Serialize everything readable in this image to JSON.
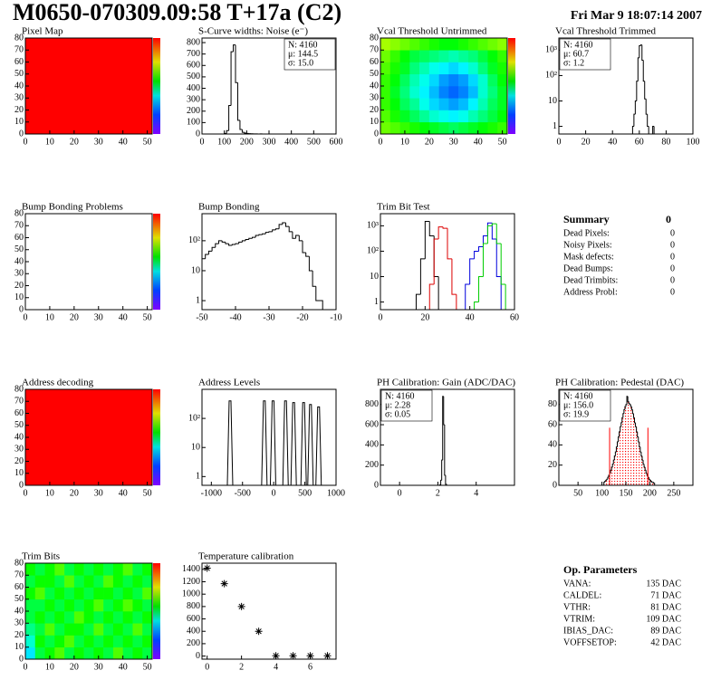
{
  "header": {
    "title": "M0650-070309.09:58 T+17a (C2)",
    "date": "Fri Mar  9 18:07:14 2007"
  },
  "chart_data": [
    {
      "type": "heatmap",
      "title": "Pixel Map",
      "color": "#ff0000",
      "xlim": [
        0,
        52
      ],
      "ylim": [
        0,
        80
      ],
      "xticks": [
        0,
        10,
        20,
        30,
        40,
        50
      ],
      "yticks": [
        0,
        10,
        20,
        30,
        40,
        50,
        60,
        70,
        80
      ]
    },
    {
      "type": "histogram",
      "title": "S-Curve widths: Noise (e⁻)",
      "color": "#000000",
      "bins": [
        100,
        110,
        120,
        130,
        140,
        150,
        160,
        170,
        180,
        190,
        200,
        210,
        220,
        230,
        240,
        250,
        260,
        270,
        280,
        290
      ],
      "values": [
        5,
        30,
        250,
        720,
        780,
        450,
        120,
        40,
        15,
        8,
        5,
        3,
        2,
        1,
        1,
        0,
        1,
        0,
        0
      ],
      "xlim": [
        0,
        600
      ],
      "ylim": [
        0,
        840
      ],
      "xticks": [
        0,
        100,
        200,
        300,
        400,
        500,
        600
      ],
      "yticks": [
        0,
        100,
        200,
        300,
        400,
        500,
        600,
        700,
        800
      ],
      "stats_corner": "top-right",
      "stats": [
        {
          "text": "N: 4160"
        },
        {
          "text": "μ: 144.5"
        },
        {
          "text": "σ: 15.0"
        }
      ]
    },
    {
      "type": "heatmap",
      "title": "Vcal Threshold Untrimmed",
      "zlim": [
        100,
        140
      ],
      "xlim": [
        0,
        52
      ],
      "ylim": [
        0,
        80
      ],
      "xticks": [
        0,
        10,
        20,
        30,
        40,
        50
      ],
      "yticks": [
        0,
        10,
        20,
        30,
        40,
        50,
        60,
        70,
        80
      ],
      "z": [
        [
          126,
          125,
          124,
          123,
          122,
          121,
          120,
          119,
          120,
          121,
          122,
          123,
          124
        ],
        [
          125,
          123,
          121,
          119,
          117,
          115,
          114,
          113,
          114,
          116,
          118,
          120,
          122
        ],
        [
          124,
          122,
          119,
          117,
          114,
          112,
          111,
          110,
          111,
          113,
          116,
          119,
          121
        ],
        [
          124,
          121,
          118,
          115,
          113,
          111,
          109,
          108,
          109,
          111,
          115,
          118,
          121
        ],
        [
          124,
          122,
          119,
          116,
          114,
          112,
          110,
          109,
          110,
          112,
          115,
          119,
          122
        ],
        [
          125,
          123,
          121,
          118,
          116,
          114,
          113,
          112,
          113,
          115,
          118,
          121,
          123
        ],
        [
          126,
          124,
          122,
          120,
          119,
          118,
          117,
          116,
          117,
          118,
          120,
          122,
          124
        ],
        [
          128,
          127,
          126,
          125,
          124,
          123,
          122,
          122,
          123,
          124,
          125,
          126,
          127
        ]
      ]
    },
    {
      "type": "histogram",
      "title": "Vcal Threshold Trimmed",
      "color": "#000000",
      "logy": true,
      "bins": [
        55,
        56,
        57,
        58,
        59,
        60,
        61,
        62,
        63,
        64,
        65,
        66,
        67,
        68,
        69,
        70,
        71,
        72
      ],
      "values": [
        1,
        3,
        10,
        60,
        500,
        1500,
        1600,
        400,
        60,
        12,
        3,
        1,
        0,
        0,
        0,
        1,
        0
      ],
      "xlim": [
        0,
        100
      ],
      "ylim": [
        0.5,
        3000
      ],
      "xticks": [
        0,
        20,
        40,
        60,
        80,
        100
      ],
      "yticks": [
        1,
        10,
        {
          "value": 100,
          "label": "10²"
        },
        {
          "value": 1000,
          "label": "10³"
        }
      ],
      "stats_corner": "top-left",
      "stats": [
        {
          "text": "N: 4160"
        },
        {
          "text": "μ: 60.7"
        },
        {
          "text": "σ:  1.2"
        }
      ]
    },
    {
      "type": "heatmap",
      "title": "Bump Bonding Problems",
      "xlim": [
        0,
        52
      ],
      "ylim": [
        0,
        80
      ],
      "xticks": [
        0,
        10,
        20,
        30,
        40,
        50
      ],
      "yticks": [
        0,
        10,
        20,
        30,
        40,
        50,
        60,
        70,
        80
      ]
    },
    {
      "type": "histogram",
      "title": "Bump Bonding",
      "color": "#000000",
      "logy": true,
      "bins": [
        -50,
        -49,
        -48,
        -47,
        -46,
        -45,
        -44,
        -43,
        -42,
        -41,
        -40,
        -39,
        -38,
        -37,
        -36,
        -35,
        -34,
        -33,
        -32,
        -31,
        -30,
        -29,
        -28,
        -27,
        -26,
        -25,
        -24,
        -23,
        -22,
        -21,
        -20,
        -19,
        -18,
        -17,
        -16,
        -15,
        -14
      ],
      "values": [
        25,
        35,
        45,
        60,
        80,
        100,
        90,
        80,
        70,
        75,
        80,
        90,
        100,
        110,
        120,
        130,
        150,
        160,
        170,
        190,
        200,
        230,
        250,
        350,
        400,
        300,
        200,
        120,
        150,
        100,
        40,
        30,
        10,
        3,
        1,
        1
      ],
      "xlim": [
        -50,
        -10
      ],
      "ylim": [
        0.5,
        800
      ],
      "xticks": [
        -50,
        -40,
        -30,
        -20,
        -10
      ],
      "yticks": [
        1,
        10,
        {
          "value": 100,
          "label": "10²"
        }
      ]
    },
    {
      "type": "histogram",
      "title": "Trim Bit Test",
      "logy": true,
      "bins": [
        10,
        12,
        14,
        16,
        18,
        20,
        22,
        24,
        26,
        28,
        30,
        32,
        34,
        36,
        38,
        40,
        42,
        44,
        46,
        48,
        50,
        52,
        54,
        56,
        58,
        60
      ],
      "series": [
        {
          "color": "#000000",
          "values": [
            0,
            0,
            0,
            2,
            50,
            1500,
            400,
            10,
            0,
            0,
            0,
            0,
            0,
            0,
            0,
            0,
            0,
            0,
            0,
            0,
            0,
            0,
            0,
            0,
            0
          ]
        },
        {
          "color": "#dd0000",
          "values": [
            0,
            0,
            0,
            0,
            0,
            0,
            5,
            300,
            900,
            800,
            50,
            2,
            0,
            0,
            0,
            0,
            0,
            0,
            0,
            0,
            0,
            0,
            0,
            0,
            0
          ]
        },
        {
          "color": "#0000dd",
          "values": [
            0,
            0,
            0,
            0,
            0,
            0,
            0,
            0,
            0,
            0,
            0,
            0,
            0,
            0,
            5,
            50,
            100,
            150,
            400,
            1300,
            300,
            10,
            0,
            0,
            0
          ]
        },
        {
          "color": "#00cc00",
          "values": [
            0,
            0,
            0,
            0,
            0,
            0,
            0,
            0,
            0,
            0,
            0,
            0,
            0,
            0,
            0,
            0,
            1,
            10,
            200,
            1000,
            1200,
            200,
            5,
            0,
            0
          ]
        }
      ],
      "xlim": [
        0,
        60
      ],
      "ylim": [
        0.5,
        3000
      ],
      "xticks": [
        0,
        20,
        40,
        60
      ],
      "yticks": [
        1,
        10,
        {
          "value": 100,
          "label": "10²"
        },
        {
          "value": 1000,
          "label": "10³"
        }
      ]
    },
    {
      "type": "heatmap",
      "title": "Address decoding",
      "color": "#ff0000",
      "xlim": [
        0,
        52
      ],
      "ylim": [
        0,
        80
      ],
      "xticks": [
        0,
        10,
        20,
        30,
        40,
        50
      ],
      "yticks": [
        0,
        10,
        20,
        30,
        40,
        50,
        60,
        70,
        80
      ]
    },
    {
      "type": "spikes",
      "title": "Address Levels",
      "color": "#000000",
      "logy": true,
      "x": [
        -700,
        -150,
        -10,
        190,
        320,
        480,
        590,
        720
      ],
      "values": [
        400,
        400,
        400,
        400,
        350,
        350,
        300,
        250
      ],
      "xlim": [
        -1150,
        1000
      ],
      "ylim": [
        0.5,
        1000
      ],
      "xticks": [
        -1000,
        -500,
        0,
        500,
        1000
      ],
      "yticks": [
        1,
        10,
        {
          "value": 100,
          "label": "10²"
        }
      ]
    },
    {
      "type": "histogram",
      "title": "PH Calibration: Gain (ADC/DAC)",
      "color": "#000000",
      "bins": [
        2.1,
        2.15,
        2.2,
        2.25,
        2.3,
        2.35,
        2.4,
        2.45
      ],
      "values": [
        5,
        50,
        250,
        880,
        600,
        100,
        10
      ],
      "xlim": [
        -1,
        6
      ],
      "ylim": [
        0,
        950
      ],
      "xticks": [
        0,
        2,
        4
      ],
      "yticks": [
        0,
        200,
        400,
        600,
        800
      ],
      "stats_corner": "top-left",
      "stats": [
        {
          "text": "N: 4160"
        },
        {
          "text": "μ: 2.28"
        },
        {
          "text": "σ: 0.05"
        }
      ]
    },
    {
      "type": "histogram",
      "title": "PH Calibration: Pedestal (DAC)",
      "color": "#000000",
      "fill_color": "#ff0000",
      "bins": [
        104,
        106,
        108,
        110,
        112,
        114,
        116,
        118,
        120,
        122,
        124,
        126,
        128,
        130,
        132,
        134,
        136,
        138,
        140,
        142,
        144,
        146,
        148,
        150,
        152,
        154,
        156,
        158,
        160,
        162,
        164,
        166,
        168,
        170,
        172,
        174,
        176,
        178,
        180,
        182,
        184,
        186,
        188,
        190,
        192,
        194,
        196,
        198,
        200,
        202,
        204,
        206,
        208,
        210
      ],
      "values": [
        3,
        4,
        5,
        6,
        8,
        10,
        12,
        15,
        18,
        21,
        25,
        29,
        33,
        38,
        43,
        48,
        53,
        58,
        62,
        67,
        71,
        75,
        78,
        80,
        88,
        83,
        81,
        80,
        78,
        75,
        71,
        67,
        62,
        58,
        53,
        48,
        43,
        38,
        33,
        29,
        25,
        21,
        18,
        15,
        12,
        10,
        8,
        6,
        5,
        4,
        3,
        3,
        2
      ],
      "markers": [
        116,
        196
      ],
      "marker_color": "#ff0000",
      "xlim": [
        10,
        290
      ],
      "ylim": [
        0,
        95
      ],
      "xticks": [
        50,
        100,
        150,
        200,
        250
      ],
      "yticks": [
        0,
        20,
        40,
        60,
        80
      ],
      "stats_corner": "top-left",
      "stats": [
        {
          "text": "N: 4160"
        },
        {
          "text": "μ: 156.0",
          "color": "#ff0000"
        },
        {
          "text": "σ: 19.9",
          "color": "#ff0000"
        }
      ]
    },
    {
      "type": "heatmap",
      "title": "Trim Bits",
      "zlim": [
        0,
        16
      ],
      "xlim": [
        0,
        52
      ],
      "ylim": [
        0,
        80
      ],
      "xticks": [
        0,
        10,
        20,
        30,
        40,
        50
      ],
      "yticks": [
        0,
        10,
        20,
        30,
        40,
        50,
        60,
        70,
        80
      ],
      "z": [
        [
          5,
          8,
          9,
          10,
          8,
          9,
          8,
          9,
          8,
          10,
          8,
          9,
          8
        ],
        [
          6,
          9,
          8,
          9,
          10,
          8,
          9,
          8,
          9,
          8,
          9,
          8,
          9
        ],
        [
          7,
          8,
          10,
          8,
          9,
          9,
          8,
          10,
          8,
          9,
          8,
          10,
          8
        ],
        [
          8,
          9,
          8,
          9,
          8,
          10,
          9,
          8,
          9,
          8,
          9,
          8,
          9
        ],
        [
          8,
          8,
          9,
          8,
          9,
          8,
          9,
          10,
          8,
          9,
          10,
          9,
          8
        ],
        [
          9,
          10,
          8,
          9,
          8,
          9,
          8,
          9,
          9,
          8,
          9,
          8,
          10
        ],
        [
          8,
          9,
          9,
          8,
          10,
          8,
          9,
          8,
          10,
          9,
          8,
          9,
          8
        ],
        [
          9,
          8,
          9,
          10,
          8,
          9,
          8,
          9,
          8,
          9,
          10,
          8,
          9
        ]
      ]
    },
    {
      "type": "scatter",
      "title": "Temperature calibration",
      "color": "#000000",
      "x": [
        0,
        1,
        2,
        3,
        4,
        5,
        6,
        7
      ],
      "values": [
        1420,
        1170,
        800,
        400,
        5,
        5,
        5,
        5
      ],
      "xlim": [
        -0.3,
        7.5
      ],
      "ylim": [
        -50,
        1500
      ],
      "xticks": [
        0,
        2,
        4,
        6
      ],
      "yticks": [
        0,
        200,
        400,
        600,
        800,
        1000,
        1200,
        1400
      ]
    }
  ],
  "summary": {
    "title": "Summary",
    "value": 0,
    "rows": [
      [
        "Dead Pixels:",
        0
      ],
      [
        "Noisy Pixels:",
        0
      ],
      [
        "Mask defects:",
        0
      ],
      [
        "Dead Bumps:",
        0
      ],
      [
        "Dead Trimbits:",
        0
      ],
      [
        "Address Probl:",
        0
      ]
    ]
  },
  "parameters": {
    "title": "Op. Parameters",
    "rows": [
      [
        "VANA:",
        "135 DAC"
      ],
      [
        "CALDEL:",
        "71 DAC"
      ],
      [
        "VTHR:",
        "81 DAC"
      ],
      [
        "VTRIM:",
        "109 DAC"
      ],
      [
        "IBIAS_DAC:",
        "89 DAC"
      ],
      [
        "VOFFSETOP:",
        "42 DAC"
      ]
    ]
  }
}
